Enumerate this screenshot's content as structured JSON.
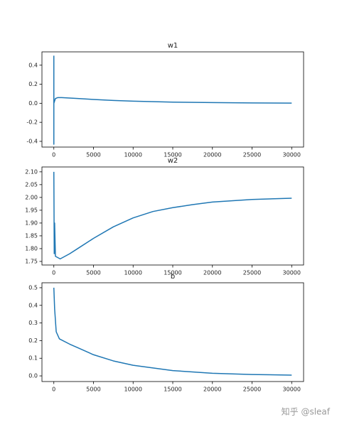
{
  "chart_data": [
    {
      "type": "line",
      "title": "w1",
      "x": [
        0,
        0,
        0,
        200,
        500,
        1000,
        2000,
        3000,
        5000,
        7500,
        10000,
        15000,
        20000,
        25000,
        30000
      ],
      "series": [
        {
          "color": "#1f77b4",
          "values": [
            0.5,
            -0.43,
            0.0,
            0.05,
            0.06,
            0.06,
            0.055,
            0.05,
            0.04,
            0.03,
            0.022,
            0.012,
            0.007,
            0.004,
            0.002
          ]
        }
      ],
      "xlim": [
        -1500,
        31500
      ],
      "xticks": [
        0,
        5000,
        10000,
        15000,
        20000,
        25000,
        30000
      ],
      "ylim": [
        -0.46,
        0.54
      ],
      "yticks": [
        -0.4,
        -0.2,
        {
          "value": 0,
          "label": "0.0"
        },
        0.2,
        0.4
      ]
    },
    {
      "type": "line",
      "title": "w2",
      "x": [
        0,
        50,
        100,
        200,
        800,
        2000,
        3000,
        5000,
        7500,
        10000,
        12500,
        15000,
        17500,
        20000,
        25000,
        30000
      ],
      "series": [
        {
          "color": "#1f77b4",
          "values": [
            2.1,
            1.78,
            1.9,
            1.77,
            1.76,
            1.78,
            1.8,
            1.84,
            1.885,
            1.92,
            1.945,
            1.96,
            1.972,
            1.982,
            1.992,
            1.997
          ]
        }
      ],
      "xlim": [
        -1500,
        31500
      ],
      "xticks": [
        0,
        5000,
        10000,
        15000,
        20000,
        25000,
        30000
      ],
      "ylim": [
        1.736,
        2.119
      ],
      "yticks": [
        1.75,
        {
          "value": 1.8,
          "label": "1.80"
        },
        1.85,
        {
          "value": 1.9,
          "label": "1.90"
        },
        1.95,
        {
          "value": 2.0,
          "label": "2.00"
        },
        2.05,
        {
          "value": 2.1,
          "label": "2.10"
        }
      ]
    },
    {
      "type": "line",
      "title": "b",
      "x": [
        0,
        100,
        300,
        700,
        2000,
        3000,
        5000,
        7500,
        10000,
        15000,
        20000,
        25000,
        30000
      ],
      "series": [
        {
          "color": "#1f77b4",
          "values": [
            0.5,
            0.38,
            0.25,
            0.21,
            0.18,
            0.16,
            0.12,
            0.085,
            0.06,
            0.03,
            0.015,
            0.008,
            0.004
          ]
        }
      ],
      "xlim": [
        -1500,
        31500
      ],
      "xticks": [
        0,
        5000,
        10000,
        15000,
        20000,
        25000,
        30000
      ],
      "ylim": [
        -0.032,
        0.528
      ],
      "yticks": [
        {
          "value": 0,
          "label": "0.0"
        },
        0.1,
        0.2,
        0.3,
        0.4,
        0.5
      ]
    }
  ],
  "watermark": "知乎 @sleaf"
}
